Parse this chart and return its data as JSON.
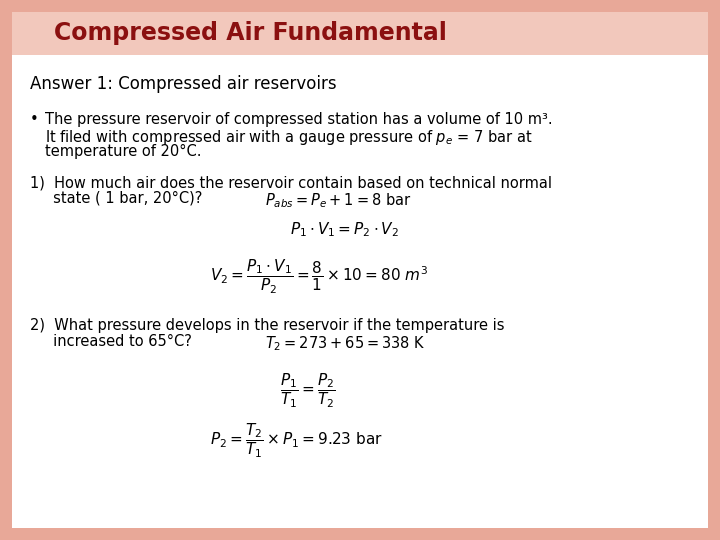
{
  "bg_color": "#FFFFFF",
  "border_color": "#E8A898",
  "title_bg_color": "#F2C8BC",
  "title_text": "Compressed Air Fundamental",
  "title_color": "#8B1010",
  "orange_circle_color": "#E87820",
  "text_color": "#000000",
  "font_size_title": 17,
  "font_size_body": 10.5,
  "font_size_formula": 11,
  "answer_header": "Answer 1: Compressed air reservoirs",
  "bullet_line1": "The pressure reservoir of compressed station has a volume of 10 m³.",
  "bullet_line2": "It filed with compressed air with a gauge pressure of $p_e$ = 7 bar at",
  "bullet_line3": "temperature of 20°C.",
  "q1_line1": "1)  How much air does the reservoir contain based on technical normal",
  "q1_line2": "     state ( 1 bar, 20°C)?",
  "q1_inline": "$P_{abs} = P_e + 1 = 8$ bar",
  "q1_f1": "$P_1 \\cdot V_1 = P_2 \\cdot V_2$",
  "q1_f2": "$V_2 = \\dfrac{P_1 \\cdot V_1}{P_2} = \\dfrac{8}{1} \\times 10 = 80\\ m^3$",
  "q2_line1": "2)  What pressure develops in the reservoir if the temperature is",
  "q2_line2": "     increased to 65°C?",
  "q2_inline": "$T_2 = 273 + 65 = 338$ K",
  "q2_f1": "$\\dfrac{P_1}{T_1} = \\dfrac{P_2}{T_2}$",
  "q2_f2": "$P_2 = \\dfrac{T_2}{T_1} \\times P_1 = 9.23$ bar"
}
